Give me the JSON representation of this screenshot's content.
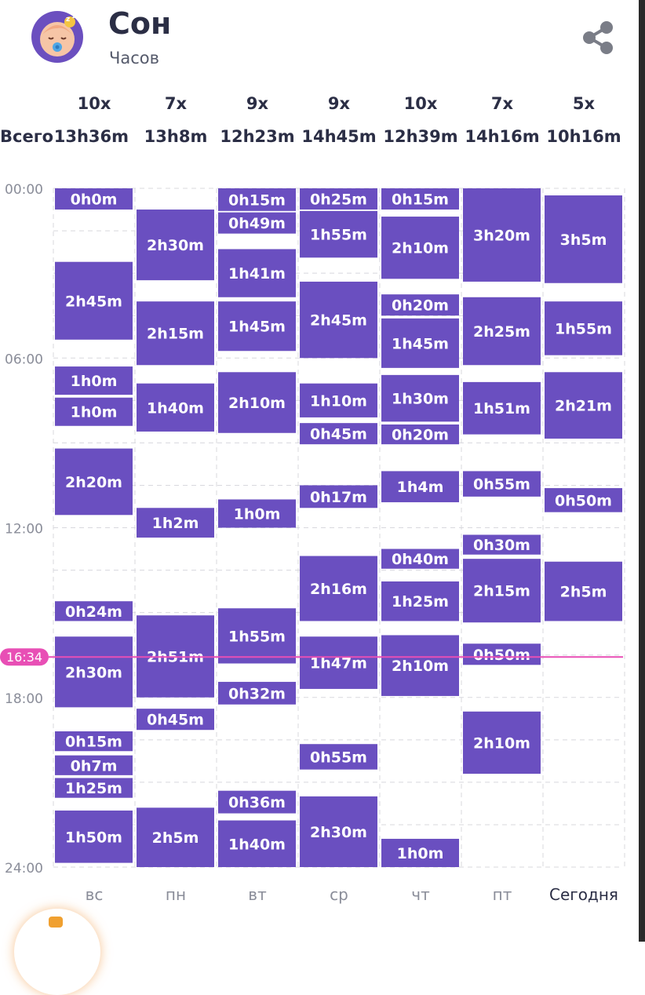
{
  "header": {
    "title": "Сон",
    "subtitle": "Часов"
  },
  "summary": {
    "total_label": "Всего",
    "days": [
      {
        "count": "10x",
        "total": "13h36m"
      },
      {
        "count": "7x",
        "total": "13h8m"
      },
      {
        "count": "9x",
        "total": "12h23m"
      },
      {
        "count": "9x",
        "total": "14h45m"
      },
      {
        "count": "10x",
        "total": "12h39m"
      },
      {
        "count": "7x",
        "total": "14h16m"
      },
      {
        "count": "5x",
        "total": "10h16m"
      }
    ]
  },
  "colors": {
    "bar": "#6a4fc0",
    "now_line": "#e84fb5",
    "grid": "#d8d8de",
    "axis_text": "#8a8d99"
  },
  "icons": {
    "avatar": "sleeping-baby-icon",
    "share": "share-icon"
  },
  "chart_data": {
    "type": "bar",
    "orientation": "vertical-timeline",
    "categories": [
      "вс",
      "пн",
      "вт",
      "ср",
      "чт",
      "пт",
      "Сегодня"
    ],
    "y_ticks": [
      "00:00",
      "06:00",
      "12:00",
      "18:00",
      "24:00"
    ],
    "ylim": [
      0,
      24
    ],
    "current_time": {
      "label": "16:34",
      "hour": 16.57
    },
    "sessions": [
      [
        {
          "start": 0.0,
          "end": 0.75,
          "label": "0h0m"
        },
        {
          "start": 2.6,
          "end": 5.35,
          "label": "2h45m"
        },
        {
          "start": 6.3,
          "end": 7.3,
          "label": "1h0m"
        },
        {
          "start": 7.4,
          "end": 8.4,
          "label": "1h0m"
        },
        {
          "start": 9.2,
          "end": 11.55,
          "label": "2h20m"
        },
        {
          "start": 14.6,
          "end": 15.3,
          "label": "0h24m"
        },
        {
          "start": 15.85,
          "end": 18.35,
          "label": "2h30m"
        },
        {
          "start": 19.2,
          "end": 19.9,
          "label": "0h15m"
        },
        {
          "start": 20.05,
          "end": 20.75,
          "label": "0h7m"
        },
        {
          "start": 20.85,
          "end": 21.55,
          "label": "1h25m"
        },
        {
          "start": 22.0,
          "end": 23.85,
          "label": "1h50m"
        }
      ],
      [
        {
          "start": 0.75,
          "end": 3.25,
          "label": "2h30m"
        },
        {
          "start": 4.0,
          "end": 6.25,
          "label": "2h15m"
        },
        {
          "start": 6.9,
          "end": 8.6,
          "label": "1h40m"
        },
        {
          "start": 11.3,
          "end": 12.35,
          "label": "1h2m"
        },
        {
          "start": 15.1,
          "end": 18.0,
          "label": "2h51m"
        },
        {
          "start": 18.4,
          "end": 19.15,
          "label": "0h45m"
        },
        {
          "start": 21.9,
          "end": 24.0,
          "label": "2h5m"
        }
      ],
      [
        {
          "start": 0.0,
          "end": 0.8,
          "label": "0h15m"
        },
        {
          "start": 0.85,
          "end": 1.6,
          "label": "0h49m"
        },
        {
          "start": 2.15,
          "end": 3.85,
          "label": "1h41m"
        },
        {
          "start": 4.0,
          "end": 5.75,
          "label": "1h45m"
        },
        {
          "start": 6.5,
          "end": 8.65,
          "label": "2h10m"
        },
        {
          "start": 11.0,
          "end": 12.0,
          "label": "1h0m"
        },
        {
          "start": 14.85,
          "end": 16.8,
          "label": "1h55m"
        },
        {
          "start": 17.45,
          "end": 18.25,
          "label": "0h32m"
        },
        {
          "start": 21.3,
          "end": 22.1,
          "label": "0h36m"
        },
        {
          "start": 22.35,
          "end": 24.0,
          "label": "1h40m"
        }
      ],
      [
        {
          "start": 0.0,
          "end": 0.75,
          "label": "0h25m"
        },
        {
          "start": 0.8,
          "end": 2.45,
          "label": "1h55m"
        },
        {
          "start": 3.3,
          "end": 6.0,
          "label": "2h45m"
        },
        {
          "start": 6.9,
          "end": 8.1,
          "label": "1h10m"
        },
        {
          "start": 8.3,
          "end": 9.05,
          "label": "0h45m"
        },
        {
          "start": 10.5,
          "end": 11.3,
          "label": "0h17m"
        },
        {
          "start": 13.0,
          "end": 15.3,
          "label": "2h16m"
        },
        {
          "start": 15.85,
          "end": 17.7,
          "label": "1h47m"
        },
        {
          "start": 19.65,
          "end": 20.55,
          "label": "0h55m"
        },
        {
          "start": 21.5,
          "end": 24.0,
          "label": "2h30m"
        }
      ],
      [
        {
          "start": 0.0,
          "end": 0.75,
          "label": "0h15m"
        },
        {
          "start": 1.0,
          "end": 3.2,
          "label": "2h10m"
        },
        {
          "start": 3.75,
          "end": 4.5,
          "label": "0h20m"
        },
        {
          "start": 4.6,
          "end": 6.35,
          "label": "1h45m"
        },
        {
          "start": 6.6,
          "end": 8.25,
          "label": "1h30m"
        },
        {
          "start": 8.35,
          "end": 9.05,
          "label": "0h20m"
        },
        {
          "start": 10.0,
          "end": 11.1,
          "label": "1h4m"
        },
        {
          "start": 12.75,
          "end": 13.45,
          "label": "0h40m"
        },
        {
          "start": 13.9,
          "end": 15.3,
          "label": "1h25m"
        },
        {
          "start": 15.8,
          "end": 17.95,
          "label": "2h10m"
        },
        {
          "start": 23.0,
          "end": 24.0,
          "label": "1h0m"
        }
      ],
      [
        {
          "start": 0.0,
          "end": 3.3,
          "label": "3h20m"
        },
        {
          "start": 3.85,
          "end": 6.25,
          "label": "2h25m"
        },
        {
          "start": 6.85,
          "end": 8.7,
          "label": "1h51m"
        },
        {
          "start": 10.0,
          "end": 10.9,
          "label": "0h55m"
        },
        {
          "start": 12.25,
          "end": 12.95,
          "label": "0h30m"
        },
        {
          "start": 13.1,
          "end": 15.35,
          "label": "2h15m"
        },
        {
          "start": 16.1,
          "end": 16.85,
          "label": "0h50m"
        },
        {
          "start": 18.5,
          "end": 20.7,
          "label": "2h10m"
        }
      ],
      [
        {
          "start": 0.25,
          "end": 3.35,
          "label": "3h5m"
        },
        {
          "start": 4.0,
          "end": 5.9,
          "label": "1h55m"
        },
        {
          "start": 6.5,
          "end": 8.85,
          "label": "2h21m"
        },
        {
          "start": 10.6,
          "end": 11.45,
          "label": "0h50m"
        },
        {
          "start": 13.2,
          "end": 15.3,
          "label": "2h5m"
        }
      ]
    ]
  }
}
